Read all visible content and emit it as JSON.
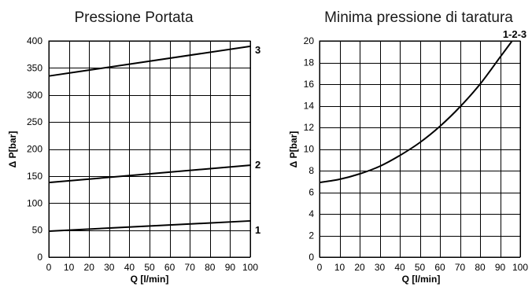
{
  "chart_data": [
    {
      "type": "line",
      "title": "Pressione Portata",
      "xlabel": "Q [l/min]",
      "ylabel": "Δ P[bar]",
      "xlim": [
        0,
        100
      ],
      "ylim": [
        0,
        400
      ],
      "x_ticks": [
        "0",
        "10",
        "20",
        "30",
        "40",
        "50",
        "60",
        "70",
        "80",
        "90",
        "100"
      ],
      "y_ticks": [
        "0",
        "50",
        "100",
        "150",
        "200",
        "250",
        "300",
        "350",
        "400"
      ],
      "grid": true,
      "series": [
        {
          "name": "3",
          "x": [
            0,
            100
          ],
          "y": [
            335,
            390
          ]
        },
        {
          "name": "2",
          "x": [
            0,
            100
          ],
          "y": [
            138,
            170
          ]
        },
        {
          "name": "1",
          "x": [
            0,
            100
          ],
          "y": [
            48,
            67
          ]
        }
      ]
    },
    {
      "type": "line",
      "title": "Minima pressione di taratura",
      "xlabel": "Q [l/min]",
      "ylabel": "Δ P[bar]",
      "xlim": [
        0,
        100
      ],
      "ylim": [
        0,
        20
      ],
      "x_ticks": [
        "0",
        "10",
        "20",
        "30",
        "40",
        "50",
        "60",
        "70",
        "80",
        "90",
        "100"
      ],
      "y_ticks": [
        "0",
        "2",
        "4",
        "6",
        "8",
        "10",
        "12",
        "14",
        "16",
        "18",
        "20"
      ],
      "grid": true,
      "series": [
        {
          "name": "1-2-3",
          "x": [
            0,
            10,
            20,
            30,
            40,
            50,
            60,
            70,
            80,
            90,
            96
          ],
          "y": [
            6.9,
            7.2,
            7.7,
            8.4,
            9.4,
            10.6,
            12.1,
            13.9,
            16.0,
            18.5,
            20.0
          ]
        }
      ]
    }
  ]
}
